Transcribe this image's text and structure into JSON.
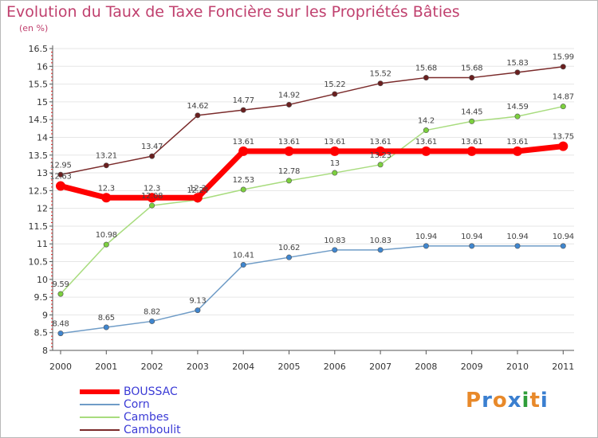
{
  "title": "Evolution du Taux de Taxe Foncière sur les Propriétés Bâties",
  "subtitle": "(en %)",
  "logo": {
    "text": "Proxiti",
    "letters": [
      "P",
      "r",
      "o",
      "x",
      "i",
      "t",
      "i"
    ],
    "colors": [
      "#e8892a",
      "#3a7fd0",
      "#e8892a",
      "#3a7fd0",
      "#2f9e3a",
      "#e8892a",
      "#3a7fd0"
    ]
  },
  "chart_data": {
    "type": "line",
    "title": "Evolution du Taux de Taxe Foncière sur les Propriétés Bâties",
    "ylabel": "(en %)",
    "xlabel": "",
    "ylim": [
      8,
      16.5
    ],
    "yticks": [
      "8",
      "8.5",
      "9",
      "9.5",
      "10",
      "10.5",
      "11",
      "11.5",
      "12",
      "12.5",
      "13",
      "13.5",
      "14",
      "14.5",
      "15",
      "15.5",
      "16",
      "16.5"
    ],
    "categories": [
      "2000",
      "2001",
      "2002",
      "2003",
      "2004",
      "2005",
      "2006",
      "2007",
      "2008",
      "2009",
      "2010",
      "2011"
    ],
    "series": [
      {
        "name": "BOUSSAC",
        "color": "#ff0000",
        "marker": "#ff0000",
        "width": 7,
        "values": [
          12.63,
          12.3,
          12.3,
          12.3,
          13.61,
          13.61,
          13.61,
          13.61,
          13.61,
          13.61,
          13.61,
          13.75
        ],
        "labels": [
          "12.63",
          "12.3",
          "12.3",
          "12.3",
          "13.61",
          "13.61",
          "13.61",
          "13.61",
          "13.61",
          "13.61",
          "13.61",
          "13.75"
        ]
      },
      {
        "name": "Corn",
        "color": "#6f9cc7",
        "marker": "#3f86cf",
        "width": 1.5,
        "values": [
          8.48,
          8.65,
          8.82,
          9.13,
          10.41,
          10.62,
          10.83,
          10.83,
          10.94,
          10.94,
          10.94,
          10.94
        ],
        "labels": [
          "8.48",
          "8.65",
          "8.82",
          "9.13",
          "10.41",
          "10.62",
          "10.83",
          "10.83",
          "10.94",
          "10.94",
          "10.94",
          "10.94"
        ]
      },
      {
        "name": "Cambes",
        "color": "#a8dc7e",
        "marker": "#7cd03e",
        "width": 1.5,
        "values": [
          9.59,
          10.98,
          12.08,
          12.24,
          12.53,
          12.78,
          13.0,
          13.23,
          14.2,
          14.45,
          14.59,
          14.87
        ],
        "labels": [
          "9.59",
          "10.98",
          "12.08",
          "12.24",
          "12.53",
          "12.78",
          "13",
          "13.23",
          "14.2",
          "14.45",
          "14.59",
          "14.87"
        ]
      },
      {
        "name": "Camboulit",
        "color": "#7a2a2a",
        "marker": "#6a1f1f",
        "width": 1.5,
        "values": [
          12.95,
          13.21,
          13.47,
          14.62,
          14.77,
          14.92,
          15.22,
          15.52,
          15.68,
          15.68,
          15.83,
          15.99
        ],
        "labels": [
          "12.95",
          "13.21",
          "13.47",
          "14.62",
          "14.77",
          "14.92",
          "15.22",
          "15.52",
          "15.68",
          "15.68",
          "15.83",
          "15.99"
        ]
      }
    ]
  }
}
